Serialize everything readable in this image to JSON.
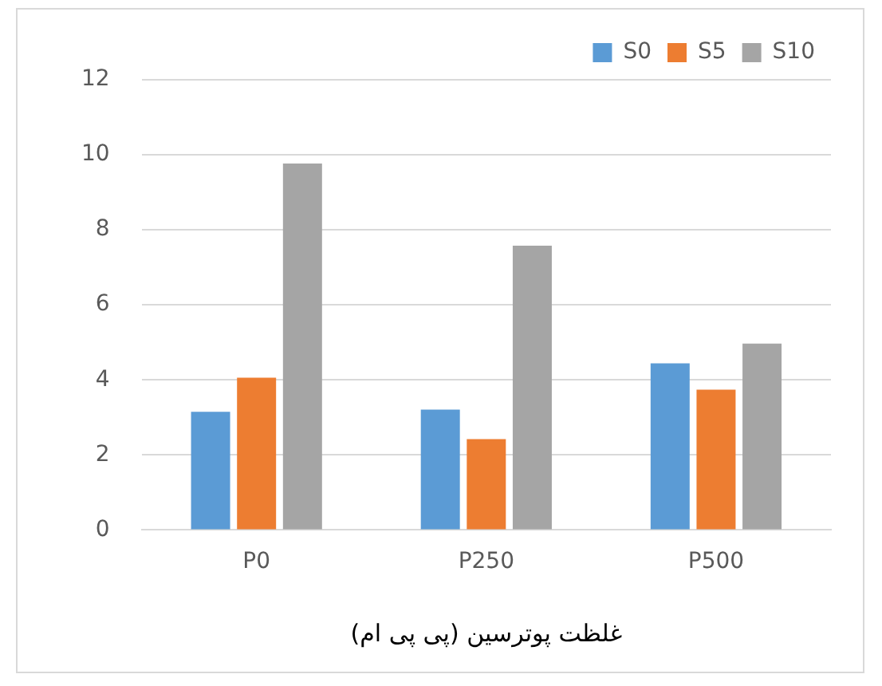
{
  "chart_data": {
    "type": "bar",
    "categories": [
      "P0",
      "P250",
      "P500"
    ],
    "series": [
      {
        "name": "S0",
        "color": "#5b9bd5",
        "values": [
          3.15,
          3.21,
          4.44
        ]
      },
      {
        "name": "S5",
        "color": "#ed7d31",
        "values": [
          4.06,
          2.42,
          3.74
        ]
      },
      {
        "name": "S10",
        "color": "#a5a5a5",
        "values": [
          9.77,
          7.58,
          4.97
        ]
      }
    ],
    "xlabel": "غلظت پوترسین (پی پی ام)",
    "ylim": [
      0,
      12
    ],
    "yticks": [
      0,
      2,
      4,
      6,
      8,
      10,
      12
    ],
    "grid": "y",
    "legend": "top right"
  }
}
